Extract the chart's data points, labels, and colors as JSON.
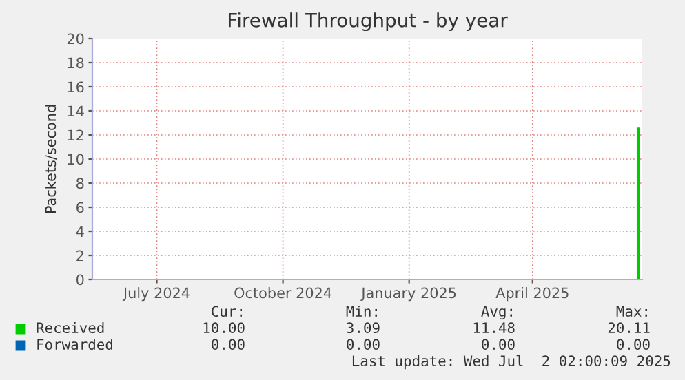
{
  "chart_data": {
    "type": "line",
    "title": "Firewall Throughput - by year",
    "ylabel": "Packets/second",
    "xlim": [
      "2024-05-30",
      "2025-07-05"
    ],
    "xticks": [
      {
        "value": "2024-07-16",
        "label": "July 2024"
      },
      {
        "value": "2024-10-16",
        "label": "October 2024"
      },
      {
        "value": "2025-01-16",
        "label": "January 2025"
      },
      {
        "value": "2025-04-16",
        "label": "April 2025"
      }
    ],
    "ylim": [
      0,
      20
    ],
    "yticks": [
      0,
      2,
      4,
      6,
      8,
      10,
      12,
      14,
      16,
      18,
      20
    ],
    "grid": true,
    "legend": "bottom left",
    "series": [
      {
        "name": "Received",
        "color": "#00cc00",
        "x": [
          "2025-07-02",
          "2025-07-02"
        ],
        "values": [
          0,
          12.5
        ]
      },
      {
        "name": "Forwarded",
        "color": "#0066b3"
      }
    ],
    "annotations": [
      "Cur:",
      "Min:",
      "Avg:",
      "Max:",
      "10.00",
      "3.09",
      "11.48",
      "20.11",
      "0.00",
      "0.00",
      "0.00",
      "0.00",
      "Last update: Wed Jul  2 02:00:09 2025"
    ]
  }
}
